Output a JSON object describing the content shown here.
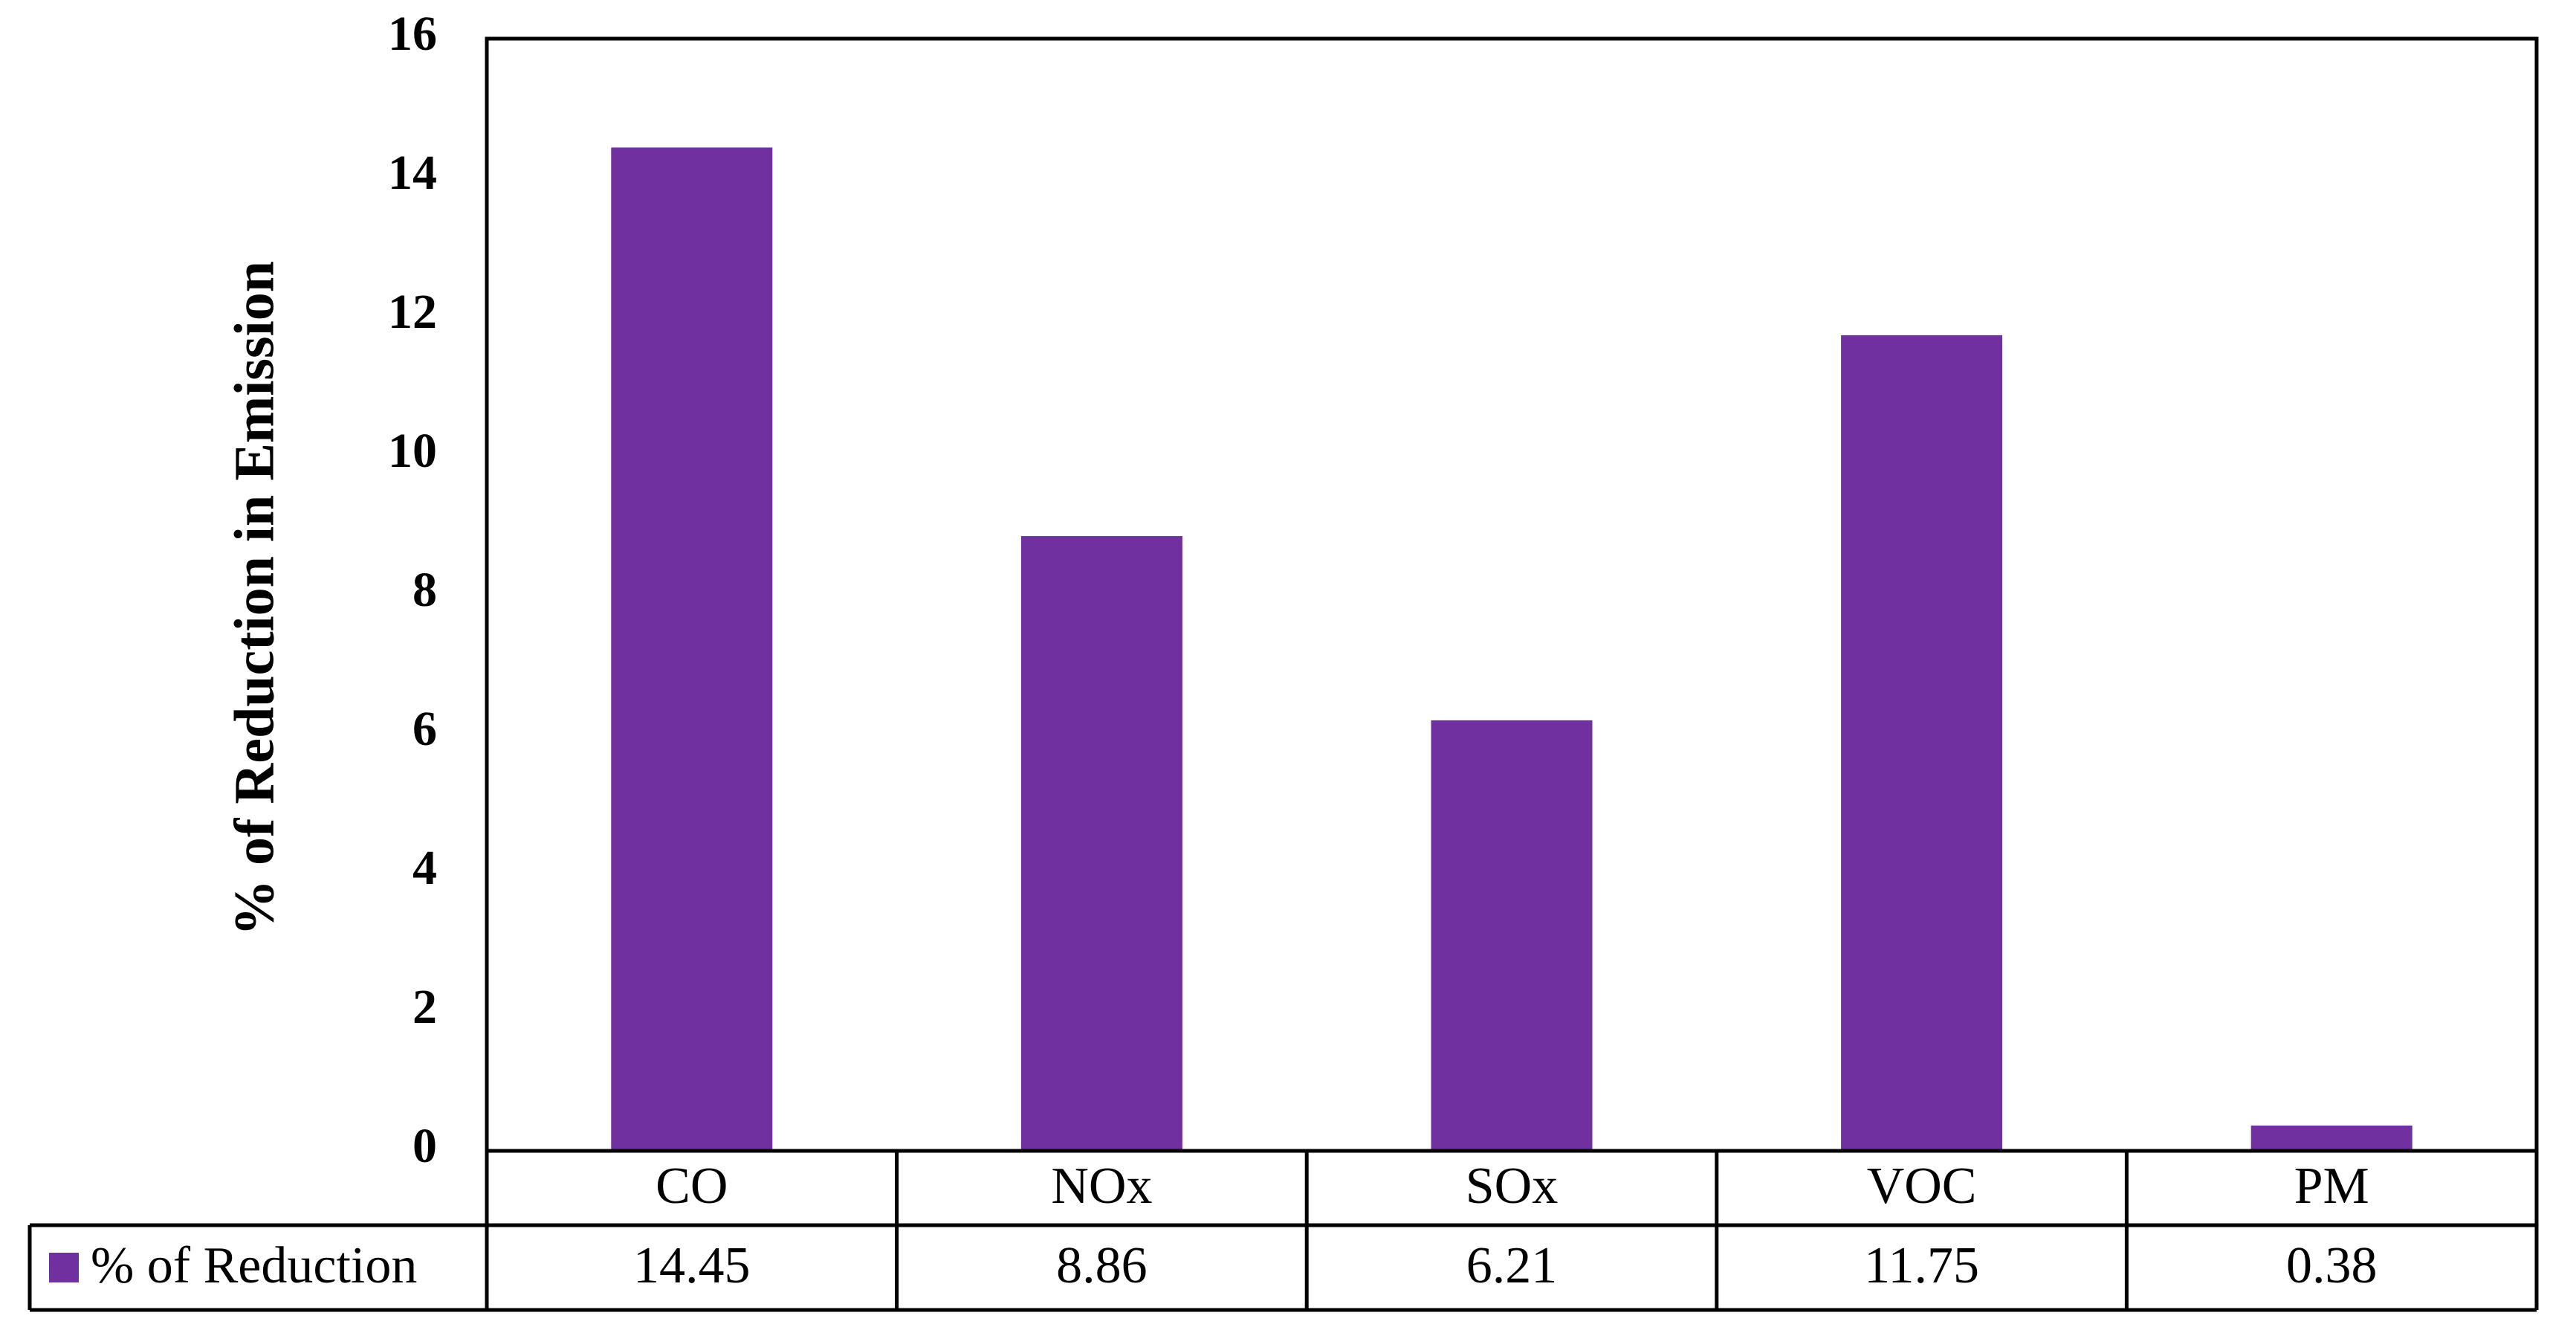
{
  "chart_data": {
    "type": "bar",
    "title": "",
    "xlabel": "",
    "ylabel": "% of Reduction in Emission",
    "ylim": [
      0,
      16
    ],
    "yticks": [
      0,
      2,
      4,
      6,
      8,
      10,
      12,
      14,
      16
    ],
    "categories": [
      "CO",
      "NOx",
      "SOx",
      "VOC",
      "PM"
    ],
    "series": [
      {
        "name": "% of Reduction",
        "values": [
          14.45,
          8.86,
          6.21,
          11.75,
          0.38
        ],
        "value_labels": [
          "14.45",
          "8.86",
          "6.21",
          "11.75",
          "0.38"
        ],
        "color": "#7030A0"
      }
    ],
    "grid": false,
    "legend": "data-table-left",
    "data_table": true
  }
}
